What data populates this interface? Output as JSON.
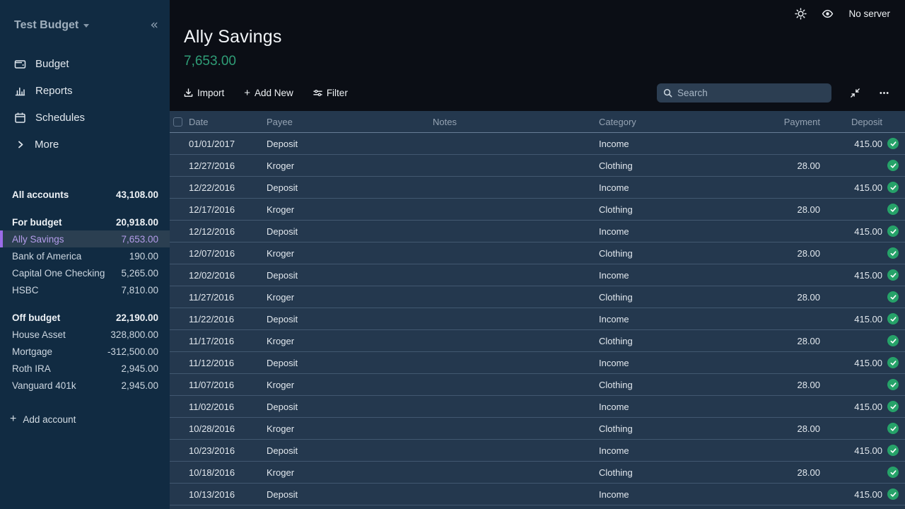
{
  "sidebar": {
    "budget_name": "Test Budget",
    "collapse_icon": "chevrons-left-icon",
    "nav": [
      {
        "label": "Budget",
        "icon": "wallet-icon"
      },
      {
        "label": "Reports",
        "icon": "bar-chart-icon"
      },
      {
        "label": "Schedules",
        "icon": "calendar-icon"
      },
      {
        "label": "More",
        "icon": "chevron-right-icon"
      }
    ],
    "all_accounts": {
      "label": "All accounts",
      "balance": "43,108.00"
    },
    "groups": [
      {
        "label": "For budget",
        "balance": "20,918.00",
        "accounts": [
          {
            "name": "Ally Savings",
            "balance": "7,653.00",
            "selected": true
          },
          {
            "name": "Bank of America",
            "balance": "190.00",
            "selected": false
          },
          {
            "name": "Capital One Checking",
            "balance": "5,265.00",
            "selected": false
          },
          {
            "name": "HSBC",
            "balance": "7,810.00",
            "selected": false
          }
        ]
      },
      {
        "label": "Off budget",
        "balance": "22,190.00",
        "accounts": [
          {
            "name": "House Asset",
            "balance": "328,800.00",
            "selected": false
          },
          {
            "name": "Mortgage",
            "balance": "-312,500.00",
            "selected": false
          },
          {
            "name": "Roth IRA",
            "balance": "2,945.00",
            "selected": false
          },
          {
            "name": "Vanguard 401k",
            "balance": "2,945.00",
            "selected": false
          }
        ]
      }
    ],
    "add_account_label": "Add account"
  },
  "topbar": {
    "theme_icon": "sun-icon",
    "privacy_icon": "eye-icon",
    "server_status": "No server"
  },
  "header": {
    "account_name": "Ally Savings",
    "balance": "7,653.00",
    "balance_color": "#2f9e77"
  },
  "toolbar": {
    "import_label": "Import",
    "add_new_label": "Add New",
    "filter_label": "Filter",
    "search_placeholder": "Search"
  },
  "table": {
    "columns": [
      "Date",
      "Payee",
      "Notes",
      "Category",
      "Payment",
      "Deposit"
    ],
    "rows": [
      {
        "date": "01/01/2017",
        "payee": "Deposit",
        "notes": "",
        "category": "Income",
        "payment": "",
        "deposit": "415.00",
        "cleared": true
      },
      {
        "date": "12/27/2016",
        "payee": "Kroger",
        "notes": "",
        "category": "Clothing",
        "payment": "28.00",
        "deposit": "",
        "cleared": true
      },
      {
        "date": "12/22/2016",
        "payee": "Deposit",
        "notes": "",
        "category": "Income",
        "payment": "",
        "deposit": "415.00",
        "cleared": true
      },
      {
        "date": "12/17/2016",
        "payee": "Kroger",
        "notes": "",
        "category": "Clothing",
        "payment": "28.00",
        "deposit": "",
        "cleared": true
      },
      {
        "date": "12/12/2016",
        "payee": "Deposit",
        "notes": "",
        "category": "Income",
        "payment": "",
        "deposit": "415.00",
        "cleared": true
      },
      {
        "date": "12/07/2016",
        "payee": "Kroger",
        "notes": "",
        "category": "Clothing",
        "payment": "28.00",
        "deposit": "",
        "cleared": true
      },
      {
        "date": "12/02/2016",
        "payee": "Deposit",
        "notes": "",
        "category": "Income",
        "payment": "",
        "deposit": "415.00",
        "cleared": true
      },
      {
        "date": "11/27/2016",
        "payee": "Kroger",
        "notes": "",
        "category": "Clothing",
        "payment": "28.00",
        "deposit": "",
        "cleared": true
      },
      {
        "date": "11/22/2016",
        "payee": "Deposit",
        "notes": "",
        "category": "Income",
        "payment": "",
        "deposit": "415.00",
        "cleared": true
      },
      {
        "date": "11/17/2016",
        "payee": "Kroger",
        "notes": "",
        "category": "Clothing",
        "payment": "28.00",
        "deposit": "",
        "cleared": true
      },
      {
        "date": "11/12/2016",
        "payee": "Deposit",
        "notes": "",
        "category": "Income",
        "payment": "",
        "deposit": "415.00",
        "cleared": true
      },
      {
        "date": "11/07/2016",
        "payee": "Kroger",
        "notes": "",
        "category": "Clothing",
        "payment": "28.00",
        "deposit": "",
        "cleared": true
      },
      {
        "date": "11/02/2016",
        "payee": "Deposit",
        "notes": "",
        "category": "Income",
        "payment": "",
        "deposit": "415.00",
        "cleared": true
      },
      {
        "date": "10/28/2016",
        "payee": "Kroger",
        "notes": "",
        "category": "Clothing",
        "payment": "28.00",
        "deposit": "",
        "cleared": true
      },
      {
        "date": "10/23/2016",
        "payee": "Deposit",
        "notes": "",
        "category": "Income",
        "payment": "",
        "deposit": "415.00",
        "cleared": true
      },
      {
        "date": "10/18/2016",
        "payee": "Kroger",
        "notes": "",
        "category": "Clothing",
        "payment": "28.00",
        "deposit": "",
        "cleared": true
      },
      {
        "date": "10/13/2016",
        "payee": "Deposit",
        "notes": "",
        "category": "Income",
        "payment": "",
        "deposit": "415.00",
        "cleared": true
      },
      {
        "date": "",
        "payee": "",
        "notes": "",
        "category": "",
        "payment": "",
        "deposit": "",
        "cleared": false
      }
    ]
  },
  "colors": {
    "accent_purple": "#9b6ce8",
    "selected_text_purple": "#b39cea",
    "balance_green": "#2f9e77",
    "cleared_green": "#26a269",
    "sidebar_bg": "#112b42",
    "main_bg": "#0b0e15",
    "row_bg": "#24384e"
  }
}
